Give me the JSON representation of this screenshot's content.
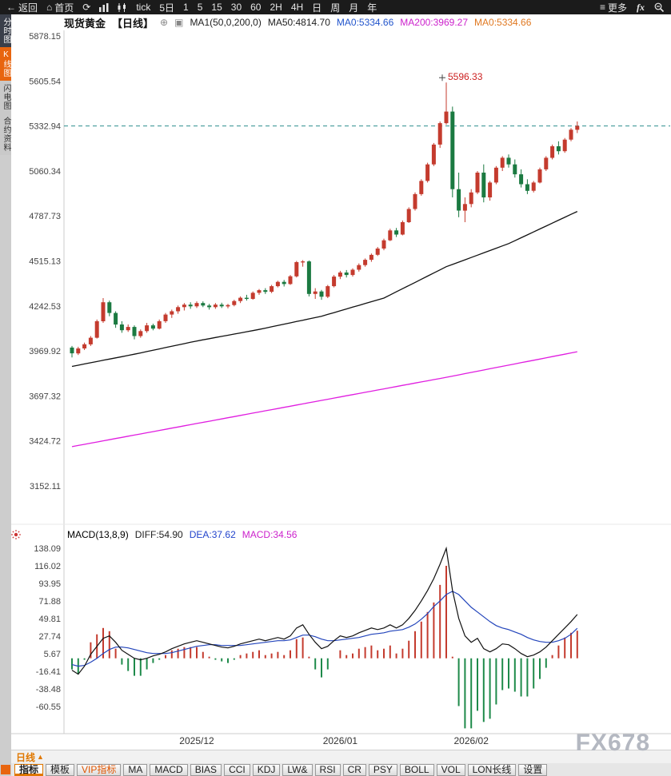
{
  "toolbar": {
    "back": "返回",
    "home": "首页",
    "tick_label": "tick",
    "five_day": "5日",
    "intervals": [
      "1",
      "5",
      "15",
      "30",
      "60",
      "2H",
      "4H",
      "日",
      "周",
      "月",
      "年"
    ],
    "more": "更多",
    "fx": "fx"
  },
  "left_rail": {
    "items": [
      {
        "label": "分时图",
        "bg": "#3a3f4a",
        "fg": "#ffffff",
        "active": false
      },
      {
        "label": "K线图",
        "bg": "#e8650f",
        "fg": "#ffffff",
        "active": true
      },
      {
        "label": "闪电图",
        "bg": "#c9c9c9",
        "fg": "#333333",
        "active": false
      },
      {
        "label": "合约资料",
        "bg": "#c9c9c9",
        "fg": "#333333",
        "active": false
      }
    ]
  },
  "chart_header": {
    "instrument": "现货黄金",
    "period_tag": "【日线】",
    "legend": [
      {
        "label": "MA1(50,0,200,0)",
        "color": "#222222"
      },
      {
        "label": "MA50:4814.70",
        "color": "#222222"
      },
      {
        "label": "MA0:5334.66",
        "color": "#2255cc"
      },
      {
        "label": "MA200:3969.27",
        "color": "#cc22cc"
      },
      {
        "label": "MA0:5334.66",
        "color": "#e07820"
      }
    ]
  },
  "macd_header": {
    "title": "MACD(13,8,9)",
    "values": [
      {
        "label": "DIFF:54.90",
        "color": "#222222"
      },
      {
        "label": "DEA:37.62",
        "color": "#2244cc"
      },
      {
        "label": "MACD:34.56",
        "color": "#cc22cc"
      }
    ]
  },
  "bottom": {
    "period_tab": "日线",
    "period_arrow": "▲",
    "tabs": [
      {
        "label": "指标",
        "color": "#222222",
        "active": true
      },
      {
        "label": "模板",
        "color": "#222222",
        "active": false
      },
      {
        "label": "VIP指标",
        "color": "#e05500",
        "active": false
      },
      {
        "label": "MA",
        "color": "#222222",
        "active": false
      },
      {
        "label": "MACD",
        "color": "#222222",
        "active": false
      },
      {
        "label": "BIAS",
        "color": "#222222",
        "active": false
      },
      {
        "label": "CCI",
        "color": "#222222",
        "active": false
      },
      {
        "label": "KDJ",
        "color": "#222222",
        "active": false
      },
      {
        "label": "LW&",
        "color": "#222222",
        "active": false
      },
      {
        "label": "RSI",
        "color": "#222222",
        "active": false
      },
      {
        "label": "CR",
        "color": "#222222",
        "active": false
      },
      {
        "label": "PSY",
        "color": "#222222",
        "active": false
      },
      {
        "label": "BOLL",
        "color": "#222222",
        "active": false
      },
      {
        "label": "VOL",
        "color": "#222222",
        "active": false
      },
      {
        "label": "LON长线",
        "color": "#222222",
        "active": false
      },
      {
        "label": "设置",
        "color": "#222222",
        "active": false
      }
    ],
    "watermark": "FX678"
  },
  "chart_data": {
    "type": "candlestick",
    "title": "现货黄金 日线 K线图 + MACD",
    "price_axis_ticks": [
      5878.15,
      5605.54,
      5332.94,
      5060.34,
      4787.73,
      4515.13,
      4242.53,
      3969.92,
      3697.32,
      3424.72,
      3152.11
    ],
    "x_labels": [
      {
        "label": "2025/12",
        "index": 20
      },
      {
        "label": "2026/01",
        "index": 43
      },
      {
        "label": "2026/02",
        "index": 64
      }
    ],
    "current_price_line": 5332.94,
    "annotation": {
      "text": "5596.33",
      "index": 60,
      "price": 5596.33,
      "color": "#cc2222"
    },
    "colors": {
      "up": "#c43b2e",
      "down": "#1b7a41",
      "dashed_line": "#2e8f8f"
    },
    "candles": [
      [
        3990,
        4000,
        3930,
        3955
      ],
      [
        3955,
        3995,
        3945,
        3985
      ],
      [
        3985,
        4020,
        3975,
        4010
      ],
      [
        4010,
        4060,
        4000,
        4050
      ],
      [
        4050,
        4160,
        4045,
        4150
      ],
      [
        4150,
        4290,
        4140,
        4265
      ],
      [
        4265,
        4275,
        4180,
        4200
      ],
      [
        4200,
        4210,
        4110,
        4130
      ],
      [
        4130,
        4150,
        4080,
        4095
      ],
      [
        4095,
        4130,
        4085,
        4115
      ],
      [
        4115,
        4125,
        4040,
        4060
      ],
      [
        4060,
        4100,
        4050,
        4090
      ],
      [
        4090,
        4140,
        4080,
        4125
      ],
      [
        4125,
        4135,
        4095,
        4105
      ],
      [
        4105,
        4160,
        4100,
        4150
      ],
      [
        4150,
        4200,
        4140,
        4190
      ],
      [
        4190,
        4220,
        4170,
        4210
      ],
      [
        4210,
        4245,
        4195,
        4235
      ],
      [
        4235,
        4260,
        4215,
        4250
      ],
      [
        4250,
        4265,
        4225,
        4240
      ],
      [
        4240,
        4270,
        4230,
        4260
      ],
      [
        4260,
        4270,
        4235,
        4245
      ],
      [
        4245,
        4255,
        4220,
        4235
      ],
      [
        4235,
        4260,
        4225,
        4250
      ],
      [
        4250,
        4262,
        4230,
        4240
      ],
      [
        4240,
        4255,
        4228,
        4248
      ],
      [
        4248,
        4280,
        4240,
        4272
      ],
      [
        4272,
        4300,
        4260,
        4292
      ],
      [
        4292,
        4310,
        4275,
        4285
      ],
      [
        4285,
        4330,
        4280,
        4322
      ],
      [
        4322,
        4345,
        4310,
        4338
      ],
      [
        4338,
        4350,
        4315,
        4328
      ],
      [
        4328,
        4370,
        4320,
        4362
      ],
      [
        4362,
        4395,
        4355,
        4388
      ],
      [
        4388,
        4400,
        4360,
        4375
      ],
      [
        4375,
        4430,
        4370,
        4422
      ],
      [
        4422,
        4515,
        4415,
        4508
      ],
      [
        4508,
        4520,
        4480,
        4512
      ],
      [
        4512,
        4518,
        4300,
        4315
      ],
      [
        4315,
        4350,
        4285,
        4330
      ],
      [
        4330,
        4340,
        4280,
        4298
      ],
      [
        4298,
        4370,
        4290,
        4362
      ],
      [
        4362,
        4430,
        4355,
        4420
      ],
      [
        4420,
        4455,
        4405,
        4445
      ],
      [
        4445,
        4460,
        4415,
        4430
      ],
      [
        4430,
        4470,
        4420,
        4462
      ],
      [
        4462,
        4500,
        4450,
        4490
      ],
      [
        4490,
        4530,
        4480,
        4522
      ],
      [
        4522,
        4560,
        4510,
        4552
      ],
      [
        4552,
        4600,
        4545,
        4590
      ],
      [
        4590,
        4650,
        4580,
        4640
      ],
      [
        4640,
        4710,
        4635,
        4700
      ],
      [
        4700,
        4715,
        4660,
        4675
      ],
      [
        4675,
        4760,
        4670,
        4750
      ],
      [
        4750,
        4840,
        4745,
        4830
      ],
      [
        4830,
        4930,
        4820,
        4920
      ],
      [
        4920,
        5010,
        4910,
        5000
      ],
      [
        5000,
        5110,
        4990,
        5100
      ],
      [
        5100,
        5230,
        5090,
        5220
      ],
      [
        5220,
        5360,
        5200,
        5350
      ],
      [
        5350,
        5596.33,
        5340,
        5420
      ],
      [
        5420,
        5450,
        4900,
        4950
      ],
      [
        4950,
        5050,
        4780,
        4820
      ],
      [
        4820,
        4900,
        4750,
        4860
      ],
      [
        4860,
        4950,
        4840,
        4930
      ],
      [
        4930,
        5060,
        4920,
        5050
      ],
      [
        5050,
        5100,
        4870,
        4900
      ],
      [
        4900,
        5000,
        4880,
        4990
      ],
      [
        4990,
        5090,
        4980,
        5080
      ],
      [
        5080,
        5150,
        5060,
        5140
      ],
      [
        5140,
        5160,
        5080,
        5100
      ],
      [
        5100,
        5130,
        5020,
        5040
      ],
      [
        5040,
        5070,
        4960,
        4980
      ],
      [
        4980,
        5010,
        4920,
        4940
      ],
      [
        4940,
        5000,
        4930,
        4990
      ],
      [
        4990,
        5080,
        4985,
        5070
      ],
      [
        5070,
        5150,
        5060,
        5140
      ],
      [
        5140,
        5220,
        5130,
        5210
      ],
      [
        5210,
        5240,
        5160,
        5180
      ],
      [
        5180,
        5260,
        5170,
        5250
      ],
      [
        5250,
        5320,
        5240,
        5310
      ],
      [
        5310,
        5360,
        5290,
        5333
      ]
    ],
    "ma50": {
      "label": "MA50",
      "color": "#111111",
      "waypoints": [
        [
          0,
          3876
        ],
        [
          10,
          3950
        ],
        [
          20,
          4030
        ],
        [
          30,
          4100
        ],
        [
          40,
          4180
        ],
        [
          50,
          4290
        ],
        [
          60,
          4480
        ],
        [
          70,
          4620
        ],
        [
          81,
          4815
        ]
      ]
    },
    "ma200": {
      "label": "MA200",
      "color": "#e01ee0",
      "waypoints": [
        [
          0,
          3390
        ],
        [
          20,
          3530
        ],
        [
          40,
          3670
        ],
        [
          60,
          3810
        ],
        [
          81,
          3965
        ]
      ]
    },
    "macd": {
      "axis_ticks": [
        138.09,
        116.02,
        93.95,
        71.88,
        49.81,
        27.74,
        5.67,
        -16.41,
        -38.48,
        -60.55
      ],
      "colors": {
        "diff": "#111111",
        "dea": "#2244bb",
        "hist_pos": "#c43b2e",
        "hist_neg": "#1e8a4a"
      },
      "diff": [
        -15,
        -20,
        -10,
        5,
        15,
        25,
        28,
        20,
        10,
        5,
        0,
        -2,
        0,
        3,
        5,
        8,
        12,
        15,
        18,
        20,
        22,
        20,
        18,
        16,
        14,
        13,
        15,
        18,
        20,
        22,
        24,
        22,
        24,
        26,
        24,
        28,
        38,
        42,
        30,
        20,
        12,
        15,
        22,
        28,
        26,
        28,
        32,
        35,
        38,
        36,
        38,
        42,
        38,
        42,
        50,
        60,
        72,
        85,
        100,
        118,
        138,
        85,
        50,
        28,
        20,
        25,
        12,
        8,
        12,
        18,
        17,
        12,
        6,
        2,
        4,
        8,
        14,
        22,
        30,
        38,
        46,
        54.9
      ],
      "dea": [
        -8,
        -10,
        -9,
        -5,
        0,
        6,
        11,
        14,
        14,
        13,
        11,
        9,
        7,
        6,
        6,
        6,
        7,
        9,
        11,
        13,
        15,
        16,
        17,
        17,
        16,
        16,
        16,
        16,
        17,
        18,
        19,
        20,
        21,
        22,
        22,
        23,
        26,
        29,
        29,
        27,
        24,
        22,
        22,
        23,
        24,
        25,
        26,
        28,
        30,
        31,
        32,
        34,
        35,
        36,
        39,
        43,
        49,
        56,
        65,
        72,
        80,
        84,
        80,
        72,
        64,
        58,
        52,
        46,
        41,
        38,
        36,
        33,
        30,
        26,
        23,
        21,
        20,
        20,
        22,
        25,
        30,
        37.62
      ],
      "hist": [
        -14,
        -20,
        -2,
        20,
        30,
        38,
        34,
        12,
        -8,
        -16,
        -22,
        -22,
        -14,
        -6,
        -2,
        4,
        10,
        12,
        14,
        14,
        14,
        8,
        2,
        -2,
        -4,
        -6,
        -2,
        4,
        6,
        8,
        10,
        4,
        6,
        8,
        4,
        10,
        24,
        26,
        2,
        -14,
        -24,
        -14,
        0,
        10,
        4,
        6,
        12,
        14,
        16,
        10,
        12,
        16,
        6,
        12,
        22,
        34,
        46,
        58,
        70,
        92,
        116,
        2,
        -60,
        -88,
        -88,
        -66,
        -80,
        -76,
        -58,
        -40,
        -38,
        -42,
        -48,
        -48,
        -38,
        -26,
        -12,
        4,
        16,
        26,
        32,
        34.56
      ]
    }
  }
}
